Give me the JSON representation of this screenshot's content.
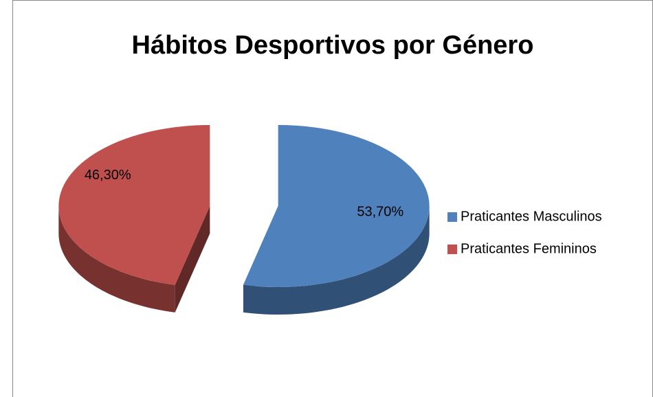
{
  "chart_data": {
    "type": "pie",
    "title": "Hábitos Desportivos por Género",
    "categories": [
      "Praticantes Masculinos",
      "Praticantes Femininos"
    ],
    "values": [
      53.7,
      46.3
    ],
    "value_labels": [
      "53,70%",
      "46,30%"
    ],
    "colors": [
      "#4f81bd",
      "#c0504d"
    ],
    "legend": "right"
  }
}
